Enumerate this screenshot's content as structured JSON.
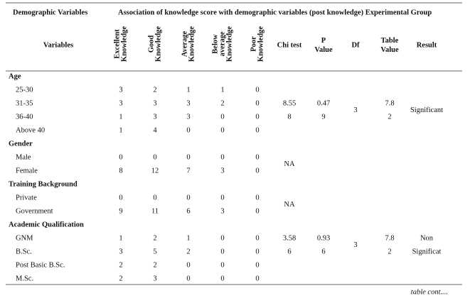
{
  "header": {
    "left": "Demographic Variables",
    "group": "Association of knowledge score with demographic variables (post knowledge) Experimental Group"
  },
  "columns": {
    "variables": "Variables",
    "knowledge": [
      [
        "Excellent",
        "Knowledge"
      ],
      [
        "Good",
        "Knowledge"
      ],
      [
        "Average",
        "Knowledge"
      ],
      [
        "Below",
        "average",
        "Knowledge"
      ],
      [
        "Poor",
        "Knowledge"
      ]
    ],
    "stats": [
      [
        "Chi test"
      ],
      [
        "P",
        "Value"
      ],
      [
        "Df"
      ],
      [
        "Table",
        "Value"
      ],
      [
        "Result"
      ]
    ]
  },
  "groups": [
    {
      "name": "Age",
      "rows": [
        {
          "label": "25-30",
          "values": [
            3,
            2,
            1,
            1,
            0
          ]
        },
        {
          "label": "31-35",
          "values": [
            3,
            3,
            3,
            2,
            0
          ]
        },
        {
          "label": "36-40",
          "values": [
            1,
            3,
            3,
            0,
            0
          ]
        },
        {
          "label": "Above 40",
          "values": [
            1,
            4,
            0,
            0,
            0
          ]
        }
      ],
      "stats": [
        [
          "8.55",
          "8"
        ],
        [
          "0.47",
          "9"
        ],
        [
          "3"
        ],
        [
          "7.8",
          "2"
        ],
        [
          "Significant"
        ]
      ]
    },
    {
      "name": "Gender",
      "rows": [
        {
          "label": "Male",
          "values": [
            0,
            0,
            0,
            0,
            0
          ]
        },
        {
          "label": "Female",
          "values": [
            8,
            12,
            7,
            3,
            0
          ]
        }
      ],
      "stats": [
        [
          "NA"
        ]
      ]
    },
    {
      "name": "Training Background",
      "rows": [
        {
          "label": "Private",
          "values": [
            0,
            0,
            0,
            0,
            0
          ]
        },
        {
          "label": "Government",
          "values": [
            9,
            11,
            6,
            3,
            0
          ]
        }
      ],
      "stats": [
        [
          "NA"
        ]
      ]
    },
    {
      "name": "Academic Qualification",
      "rows": [
        {
          "label": "GNM",
          "values": [
            1,
            2,
            1,
            0,
            0
          ]
        },
        {
          "label": "B.Sc.",
          "values": [
            3,
            5,
            2,
            0,
            0
          ]
        },
        {
          "label": "Post Basic B.Sc.",
          "values": [
            2,
            2,
            0,
            0,
            0
          ]
        },
        {
          "label": "M.Sc.",
          "values": [
            2,
            3,
            0,
            0,
            0
          ]
        }
      ],
      "stats": [
        [
          "3.58",
          "6"
        ],
        [
          "0.93",
          "6"
        ],
        [
          "3"
        ],
        [
          "7.8",
          "2"
        ],
        [
          "Non",
          "Significat"
        ]
      ]
    }
  ],
  "footer": "table cont...."
}
